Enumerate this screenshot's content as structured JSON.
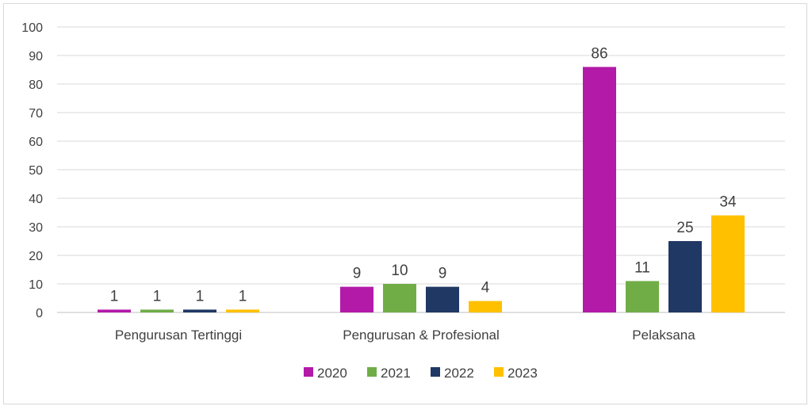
{
  "chart_data": {
    "type": "bar",
    "title": "",
    "xlabel": "",
    "ylabel": "",
    "ylim": [
      0,
      100
    ],
    "yticks": [
      0,
      10,
      20,
      30,
      40,
      50,
      60,
      70,
      80,
      90,
      100
    ],
    "grid": true,
    "legend_position": "bottom",
    "categories": [
      "Pengurusan Tertinggi",
      "Pengurusan & Profesional",
      "Pelaksana"
    ],
    "series": [
      {
        "name": "2020",
        "color": "#b31aa8",
        "values": [
          1,
          9,
          86
        ]
      },
      {
        "name": "2021",
        "color": "#70ad47",
        "values": [
          1,
          10,
          11
        ]
      },
      {
        "name": "2022",
        "color": "#203864",
        "values": [
          1,
          9,
          25
        ]
      },
      {
        "name": "2023",
        "color": "#ffc000",
        "values": [
          1,
          4,
          34
        ]
      }
    ]
  }
}
